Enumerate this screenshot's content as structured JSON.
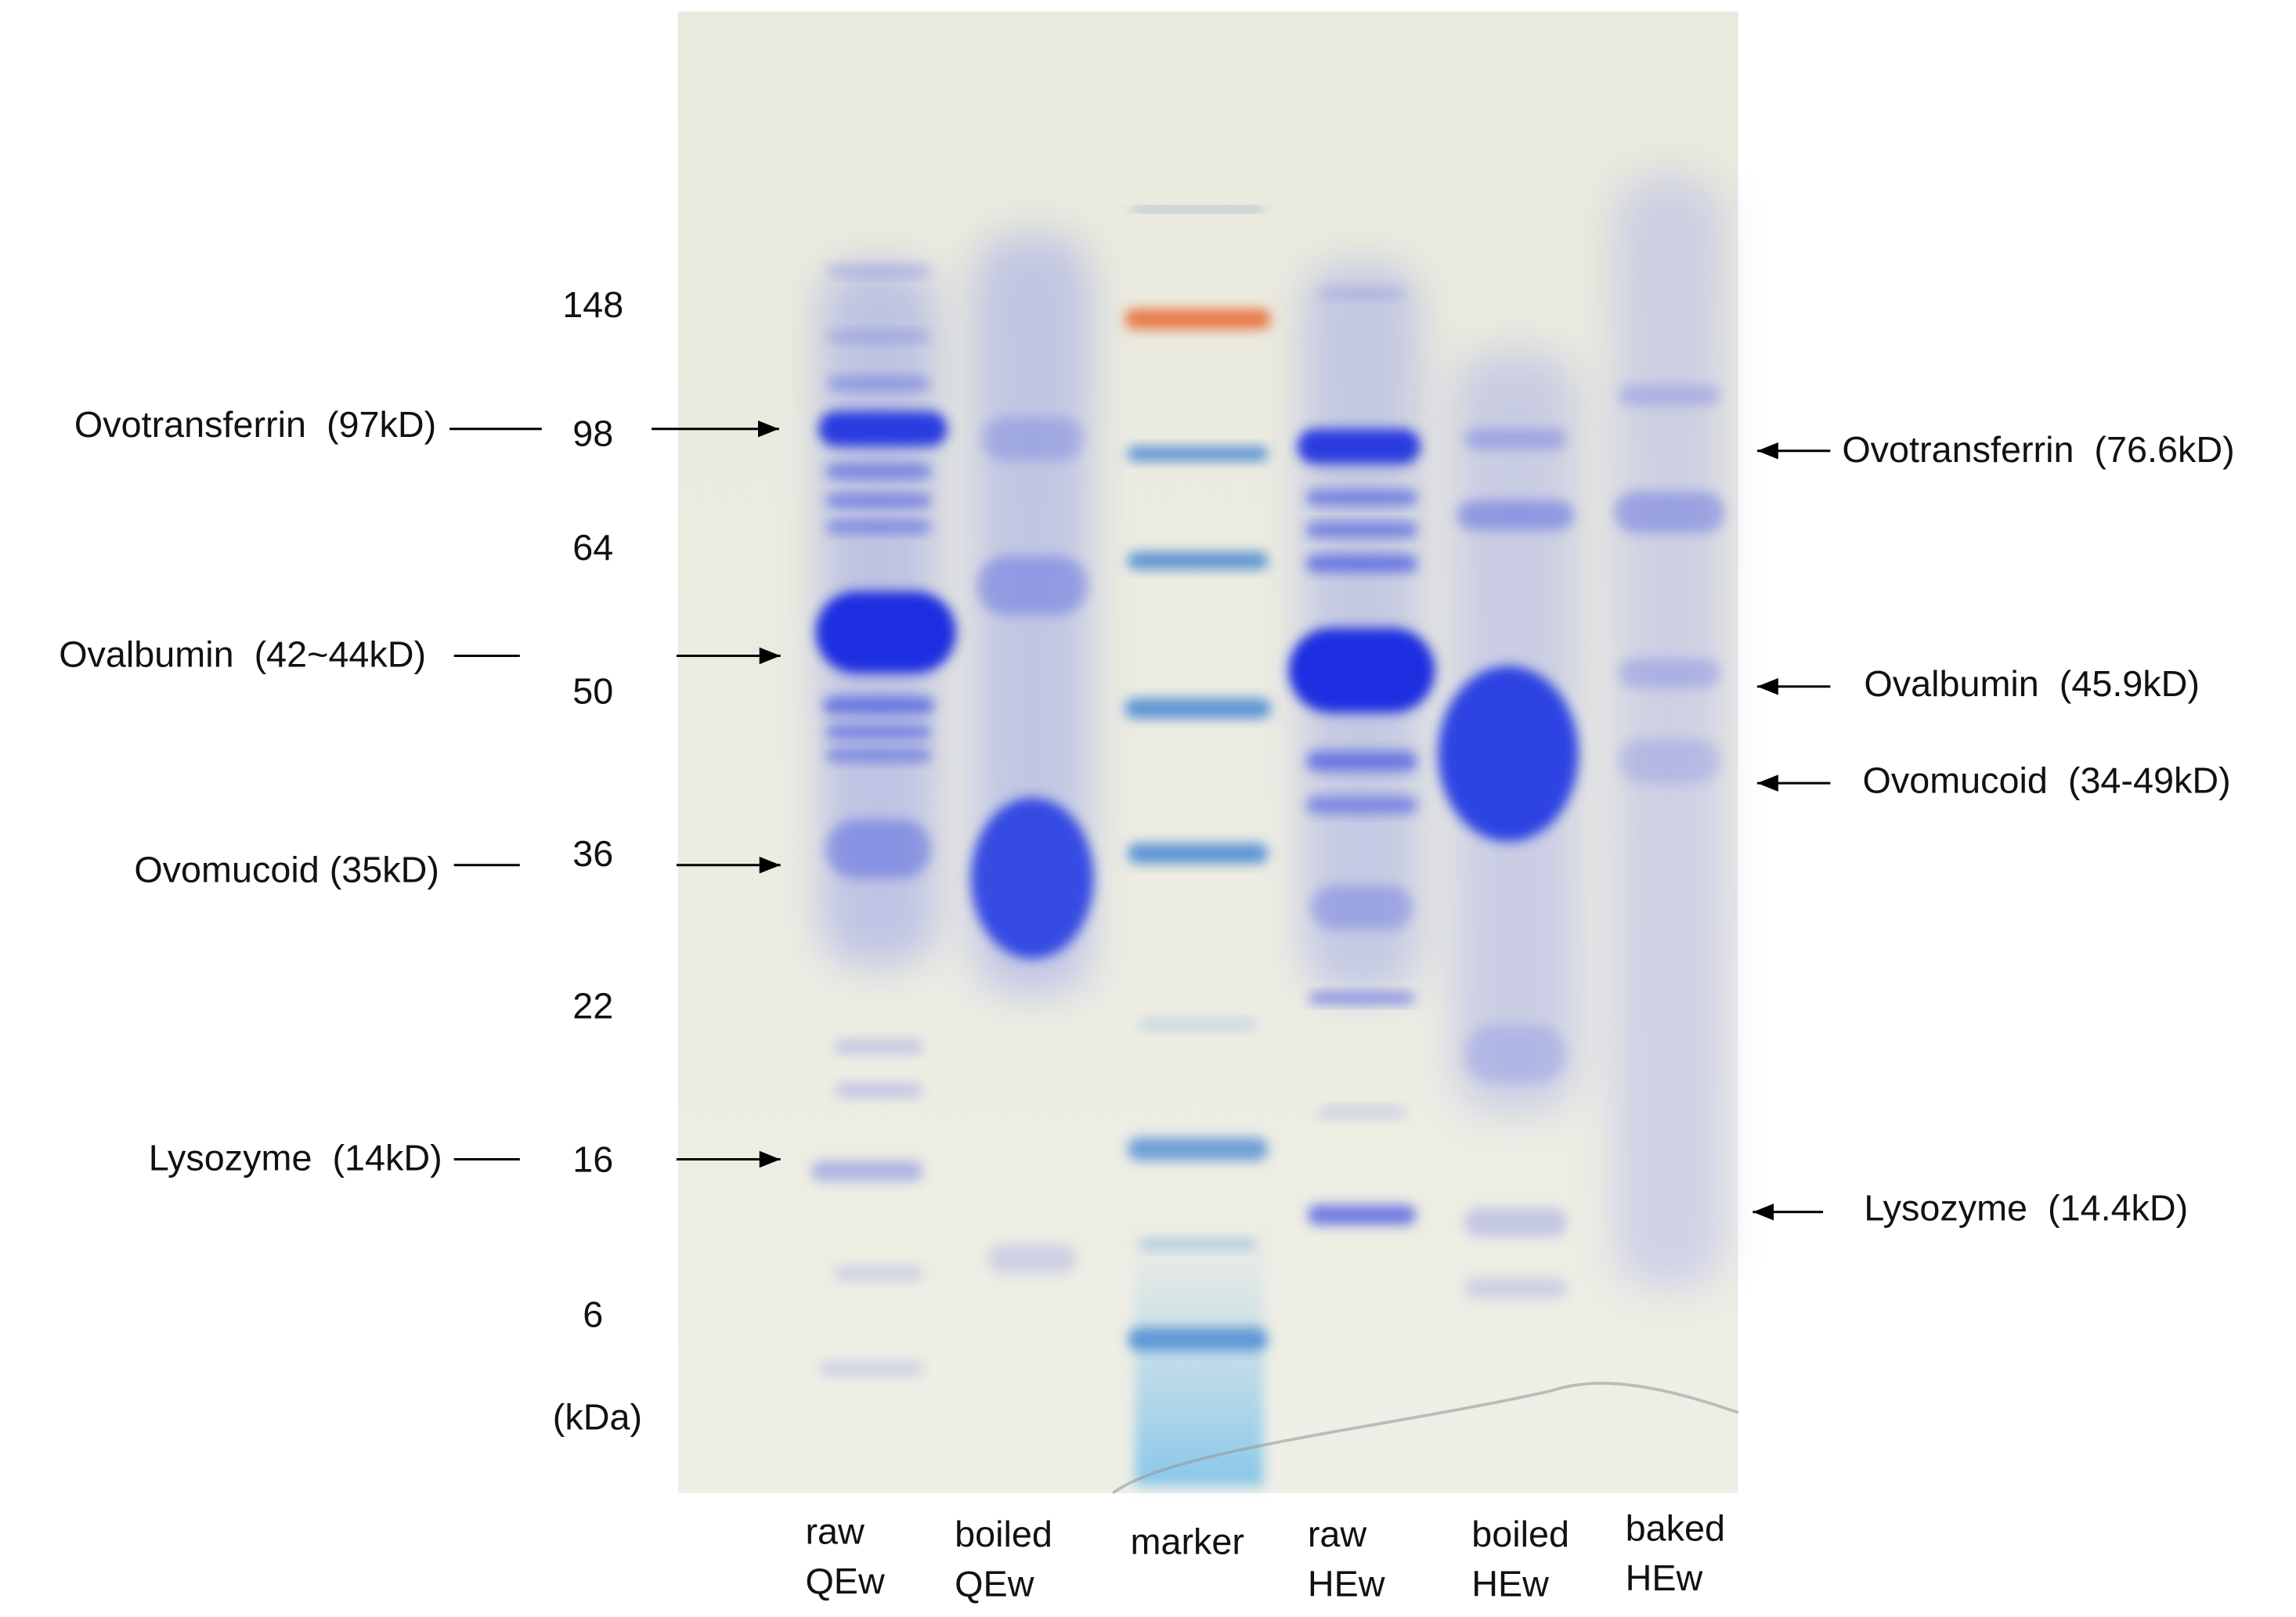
{
  "gel": {
    "mw_markers": [
      "148",
      "98",
      "64",
      "50",
      "36",
      "22",
      "16",
      "6"
    ],
    "unit": "(kDa)",
    "left_annotations": [
      "Ovotransferrin  (97kD)",
      "Ovalbumin  (42~44kD)",
      "Ovomucoid (35kD)",
      "Lysozyme  (14kD)"
    ],
    "right_annotations": [
      "Ovotransferrin  (76.6kD)",
      "Ovalbumin  (45.9kD)",
      "Ovomucoid  (34-49kD)",
      "Lysozyme  (14.4kD)"
    ],
    "lanes": [
      [
        "raw",
        "QEw"
      ],
      [
        "boiled",
        "QEw"
      ],
      [
        "marker"
      ],
      [
        "raw",
        "HEw"
      ],
      [
        "boiled",
        "HEw"
      ],
      [
        "baked",
        "HEw"
      ]
    ]
  }
}
